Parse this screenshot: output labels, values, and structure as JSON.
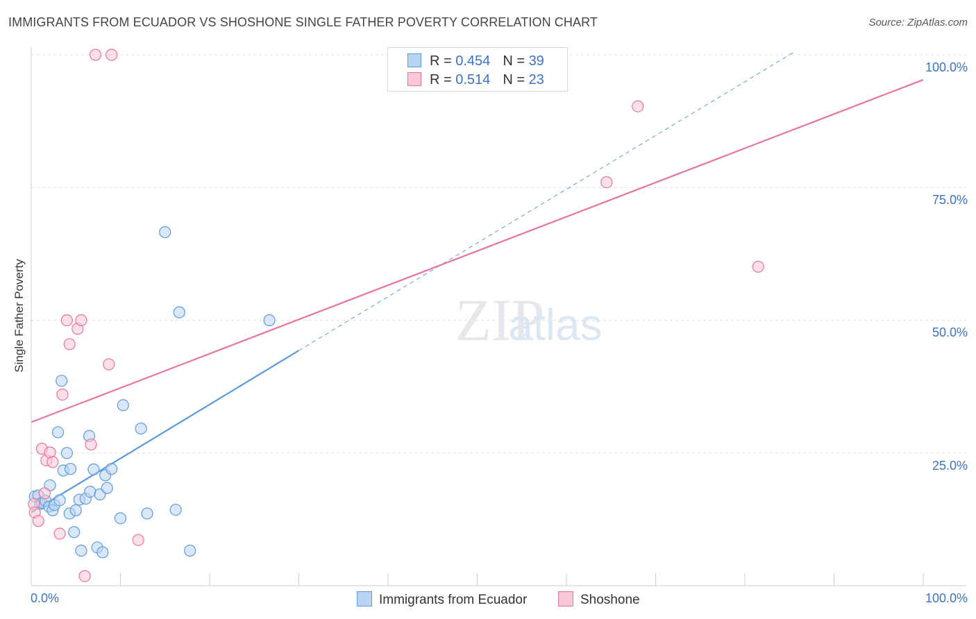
{
  "chart_data": {
    "type": "scatter",
    "title": "IMMIGRANTS FROM ECUADOR VS SHOSHONE SINGLE FATHER POVERTY CORRELATION CHART",
    "source": "Source: ZipAtlas.com",
    "xlabel": "",
    "ylabel": "Single Father Poverty",
    "xlim": [
      0,
      100
    ],
    "ylim": [
      0,
      100
    ],
    "x_tick_labels": [
      "0.0%",
      "100.0%"
    ],
    "y_ticks": [
      25,
      50,
      75,
      100
    ],
    "y_tick_labels": [
      "25.0%",
      "50.0%",
      "75.0%",
      "100.0%"
    ],
    "watermark": "ZIPatlas",
    "legend": [
      {
        "name": "Immigrants from Ecuador",
        "r_label": "R =",
        "r": "0.454",
        "n_label": "N =",
        "n": "39"
      },
      {
        "name": "Shoshone",
        "r_label": "R =",
        "r": "0.514",
        "n_label": "N =",
        "n": "23"
      }
    ],
    "series": [
      {
        "name": "Immigrants from Ecuador",
        "color": "#5b9bdc",
        "fill": "#b9d4f2",
        "trend": {
          "x0": 0,
          "y0": 13.8,
          "x1": 30,
          "y1": 44.3,
          "dashed_to_x": 85.5,
          "dashed_to_y": 100.5
        },
        "points": [
          [
            0.4,
            16.8
          ],
          [
            0.8,
            17.0
          ],
          [
            1.0,
            15.4
          ],
          [
            1.2,
            15.6
          ],
          [
            1.6,
            16.0
          ],
          [
            2.0,
            14.9
          ],
          [
            2.1,
            18.9
          ],
          [
            2.4,
            14.2
          ],
          [
            2.6,
            15.2
          ],
          [
            3.0,
            28.9
          ],
          [
            3.2,
            16.1
          ],
          [
            3.4,
            38.6
          ],
          [
            3.6,
            21.7
          ],
          [
            4.0,
            25.0
          ],
          [
            4.3,
            13.6
          ],
          [
            4.4,
            22.0
          ],
          [
            4.8,
            10.1
          ],
          [
            5.0,
            14.2
          ],
          [
            5.4,
            16.2
          ],
          [
            5.6,
            6.6
          ],
          [
            6.1,
            16.4
          ],
          [
            6.5,
            28.2
          ],
          [
            6.6,
            17.7
          ],
          [
            7.0,
            21.9
          ],
          [
            7.4,
            7.2
          ],
          [
            7.7,
            17.2
          ],
          [
            8.0,
            6.3
          ],
          [
            8.3,
            20.8
          ],
          [
            8.5,
            18.4
          ],
          [
            9.0,
            22.0
          ],
          [
            10.0,
            12.7
          ],
          [
            10.3,
            34.0
          ],
          [
            12.3,
            29.6
          ],
          [
            13.0,
            13.6
          ],
          [
            15.0,
            66.6
          ],
          [
            16.2,
            14.3
          ],
          [
            16.6,
            51.5
          ],
          [
            17.8,
            6.6
          ],
          [
            26.7,
            50.0
          ]
        ]
      },
      {
        "name": "Shoshone",
        "color": "#e8739c",
        "fill": "#f9c7d7",
        "trend": {
          "x0": 0,
          "y0": 30.8,
          "x1": 100,
          "y1": 95.3
        },
        "points": [
          [
            0.3,
            15.4
          ],
          [
            0.4,
            13.8
          ],
          [
            0.8,
            12.2
          ],
          [
            1.2,
            25.8
          ],
          [
            1.5,
            17.4
          ],
          [
            1.7,
            23.6
          ],
          [
            2.1,
            25.1
          ],
          [
            2.4,
            23.3
          ],
          [
            3.2,
            9.8
          ],
          [
            3.5,
            36.0
          ],
          [
            4.0,
            50.0
          ],
          [
            4.3,
            45.5
          ],
          [
            5.2,
            48.4
          ],
          [
            5.6,
            50.0
          ],
          [
            6.0,
            1.8
          ],
          [
            6.7,
            26.6
          ],
          [
            7.2,
            100.0
          ],
          [
            8.7,
            41.7
          ],
          [
            9.0,
            100.0
          ],
          [
            12.0,
            8.6
          ],
          [
            64.5,
            76.0
          ],
          [
            68.0,
            90.3
          ],
          [
            81.5,
            60.1
          ]
        ]
      }
    ]
  }
}
